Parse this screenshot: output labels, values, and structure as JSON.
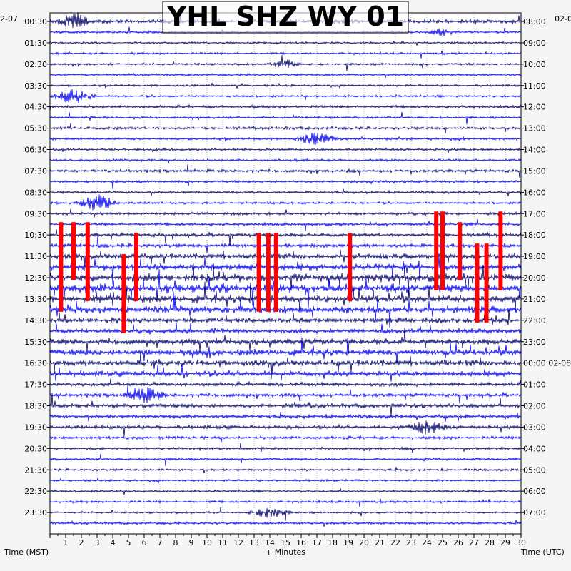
{
  "title": "YHL SHZ WY 01",
  "date_left": "2-07",
  "date_right": "02-0",
  "date_right_midnight": "02-08",
  "xlabel": "+ Minutes",
  "left_axis_label": "Time (MST)",
  "right_axis_label": "Time (UTC)",
  "colors": {
    "background": "#ffffff",
    "page": "#f5f5f5",
    "trace_dark": "#000066",
    "trace_light": "#0000ee",
    "clipped": "#ff0000",
    "grid": "#888888"
  },
  "chart_data": {
    "type": "helicorder",
    "x_ticks": [
      "1",
      "2",
      "3",
      "4",
      "5",
      "6",
      "7",
      "8",
      "9",
      "10",
      "11",
      "12",
      "13",
      "14",
      "15",
      "16",
      "17",
      "18",
      "19",
      "20",
      "21",
      "22",
      "23",
      "24",
      "25",
      "26",
      "27",
      "28",
      "29",
      "30"
    ],
    "xlim": [
      0,
      30
    ],
    "rows_per_hour": 2,
    "row_count": 48,
    "left_time_labels": [
      "00:30",
      "01:30",
      "02:30",
      "03:30",
      "04:30",
      "05:30",
      "06:30",
      "07:30",
      "08:30",
      "09:30",
      "10:30",
      "11:30",
      "12:30",
      "13:30",
      "14:30",
      "15:30",
      "16:30",
      "17:30",
      "18:30",
      "19:30",
      "20:30",
      "21:30",
      "22:30",
      "23:30"
    ],
    "right_time_labels": [
      "08:00",
      "09:00",
      "10:00",
      "11:00",
      "12:00",
      "13:00",
      "14:00",
      "15:00",
      "16:00",
      "17:00",
      "18:00",
      "19:00",
      "20:00",
      "21:00",
      "22:00",
      "23:00",
      "00:00",
      "01:00",
      "02:00",
      "03:00",
      "04:00",
      "05:00",
      "06:00",
      "07:00"
    ],
    "activity_by_row": [
      0.35,
      0.1,
      0.08,
      0.1,
      0.12,
      0.1,
      0.1,
      0.12,
      0.22,
      0.12,
      0.2,
      0.12,
      0.15,
      0.12,
      0.2,
      0.15,
      0.18,
      0.12,
      0.2,
      0.22,
      0.3,
      0.35,
      0.55,
      0.75,
      0.9,
      0.95,
      0.85,
      0.75,
      0.55,
      0.45,
      0.6,
      0.7,
      0.65,
      0.6,
      0.35,
      0.3,
      0.4,
      0.3,
      0.3,
      0.22,
      0.15,
      0.12,
      0.12,
      0.1,
      0.1,
      0.12,
      0.1,
      0.15
    ],
    "bursts": [
      {
        "row": 0,
        "minute": 1.5,
        "width": 1.2,
        "amp": 1.4
      },
      {
        "row": 1,
        "minute": 25,
        "width": 1.0,
        "amp": 0.6
      },
      {
        "row": 4,
        "minute": 15,
        "width": 1.0,
        "amp": 0.8
      },
      {
        "row": 7,
        "minute": 1.5,
        "width": 1.5,
        "amp": 1.2
      },
      {
        "row": 11,
        "minute": 17,
        "width": 1.5,
        "amp": 1.0
      },
      {
        "row": 17,
        "minute": 3,
        "width": 1.5,
        "amp": 1.3
      },
      {
        "row": 35,
        "minute": 6,
        "width": 1.5,
        "amp": 1.2
      },
      {
        "row": 38,
        "minute": 24,
        "width": 1.5,
        "amp": 1.0
      },
      {
        "row": 46,
        "minute": 14,
        "width": 1.5,
        "amp": 0.9
      }
    ],
    "clipped_segments": [
      {
        "minute": 0.7,
        "row_start": 19,
        "row_end": 27
      },
      {
        "minute": 1.5,
        "row_start": 19,
        "row_end": 24
      },
      {
        "minute": 2.4,
        "row_start": 19,
        "row_end": 26
      },
      {
        "minute": 4.7,
        "row_start": 22,
        "row_end": 29
      },
      {
        "minute": 5.5,
        "row_start": 20,
        "row_end": 26
      },
      {
        "minute": 13.3,
        "row_start": 20,
        "row_end": 27
      },
      {
        "minute": 13.9,
        "row_start": 20,
        "row_end": 27
      },
      {
        "minute": 14.4,
        "row_start": 20,
        "row_end": 27
      },
      {
        "minute": 19.1,
        "row_start": 20,
        "row_end": 26
      },
      {
        "minute": 24.6,
        "row_start": 18,
        "row_end": 25
      },
      {
        "minute": 25.0,
        "row_start": 18,
        "row_end": 25
      },
      {
        "minute": 26.1,
        "row_start": 19,
        "row_end": 24
      },
      {
        "minute": 27.2,
        "row_start": 21,
        "row_end": 28
      },
      {
        "minute": 27.8,
        "row_start": 21,
        "row_end": 28
      },
      {
        "minute": 28.7,
        "row_start": 18,
        "row_end": 25
      }
    ]
  }
}
